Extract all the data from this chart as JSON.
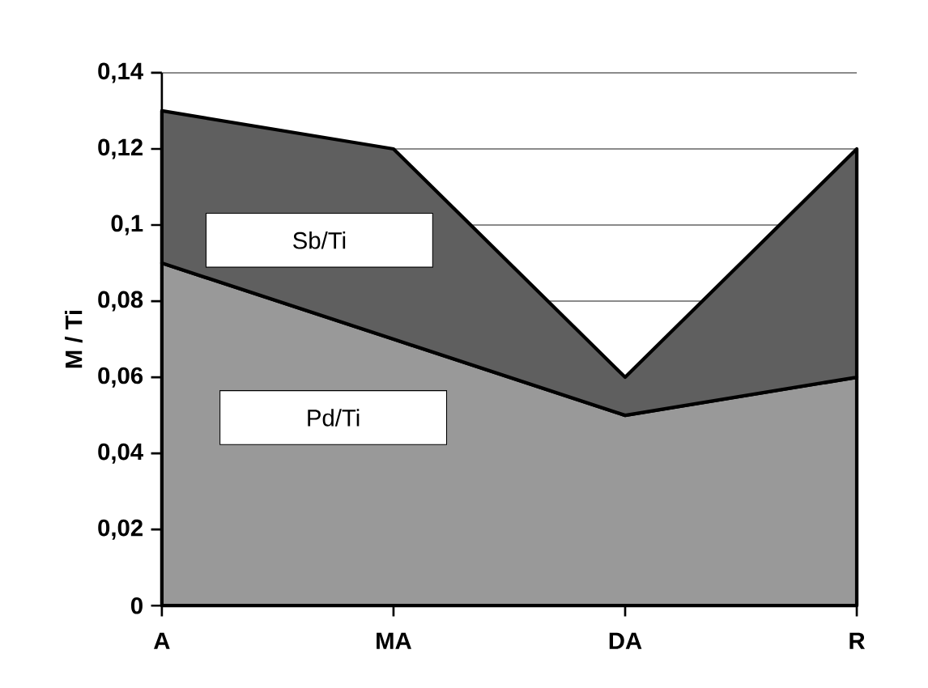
{
  "chart_data": {
    "type": "area",
    "stacked": true,
    "ylabel": "M / Ti",
    "categories": [
      "A",
      "MA",
      "DA",
      "R"
    ],
    "ylim": [
      0,
      0.14
    ],
    "yticks": [
      {
        "value": 0,
        "label": "0"
      },
      {
        "value": 0.02,
        "label": "0,02"
      },
      {
        "value": 0.04,
        "label": "0,04"
      },
      {
        "value": 0.06,
        "label": "0,06"
      },
      {
        "value": 0.08,
        "label": "0,08"
      },
      {
        "value": 0.1,
        "label": "0,1"
      },
      {
        "value": 0.12,
        "label": "0,12"
      },
      {
        "value": 0.14,
        "label": "0,14"
      }
    ],
    "grid": "y",
    "legend": false,
    "series": [
      {
        "name": "Pd/Ti",
        "color": "#999999",
        "values": [
          0.09,
          0.07,
          0.05,
          0.06
        ]
      },
      {
        "name": "Sb/Ti",
        "color": "#5f5f5f",
        "values": [
          0.04,
          0.05,
          0.01,
          0.06
        ]
      }
    ]
  }
}
